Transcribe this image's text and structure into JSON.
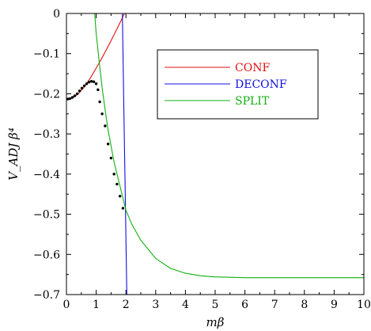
{
  "chart_data": {
    "type": "line",
    "xlabel": "mβ",
    "ylabel": "V_ADJ β⁴",
    "xlim": [
      0,
      10
    ],
    "ylim": [
      -0.7,
      0
    ],
    "xticks": [
      "0",
      "1",
      "2",
      "3",
      "4",
      "5",
      "6",
      "7",
      "8",
      "9",
      "10"
    ],
    "yticks": [
      "0",
      "−0.1",
      "−0.2",
      "−0.3",
      "−0.4",
      "−0.5",
      "−0.6",
      "−0.7"
    ],
    "grid": false,
    "legend_position": "top-right",
    "series": [
      {
        "name": "CONF",
        "color": "#e01010",
        "style": "line",
        "x": [
          0,
          0.2,
          0.4,
          0.6,
          0.8,
          1.0,
          1.2,
          1.4,
          1.6,
          1.8,
          1.95
        ],
        "y": [
          -0.215,
          -0.211,
          -0.2,
          -0.183,
          -0.161,
          -0.136,
          -0.11,
          -0.082,
          -0.053,
          -0.023,
          0.0
        ]
      },
      {
        "name": "DECONF",
        "color": "#1010e0",
        "style": "line",
        "x": [
          1.88,
          1.91,
          1.94,
          1.97,
          2.0,
          2.03
        ],
        "y": [
          0.0,
          -0.14,
          -0.28,
          -0.42,
          -0.56,
          -0.7
        ]
      },
      {
        "name": "SPLIT",
        "color": "#10b010",
        "style": "line",
        "x": [
          0.95,
          1.0,
          1.1,
          1.2,
          1.3,
          1.4,
          1.5,
          1.6,
          1.8,
          2.0,
          2.2,
          2.5,
          3.0,
          3.5,
          4.0,
          4.5,
          5.0,
          5.5,
          6.0,
          7.0,
          8.0,
          9.0,
          10.0
        ],
        "y": [
          0.0,
          -0.05,
          -0.12,
          -0.185,
          -0.24,
          -0.29,
          -0.33,
          -0.37,
          -0.43,
          -0.49,
          -0.525,
          -0.565,
          -0.61,
          -0.635,
          -0.647,
          -0.653,
          -0.656,
          -0.657,
          -0.658,
          -0.658,
          -0.658,
          -0.658,
          -0.658
        ]
      },
      {
        "name": "",
        "color": "#000000",
        "style": "dots",
        "x": [
          0.05,
          0.12,
          0.2,
          0.28,
          0.36,
          0.44,
          0.52,
          0.6,
          0.68,
          0.76,
          0.84,
          0.92,
          1.0,
          1.06,
          1.12,
          1.2,
          1.3,
          1.4,
          1.5,
          1.6,
          1.7,
          1.8,
          1.9
        ],
        "y": [
          -0.213,
          -0.212,
          -0.209,
          -0.205,
          -0.2,
          -0.193,
          -0.186,
          -0.18,
          -0.175,
          -0.171,
          -0.169,
          -0.17,
          -0.175,
          -0.19,
          -0.22,
          -0.25,
          -0.28,
          -0.325,
          -0.36,
          -0.4,
          -0.425,
          -0.455,
          -0.485
        ]
      }
    ]
  }
}
